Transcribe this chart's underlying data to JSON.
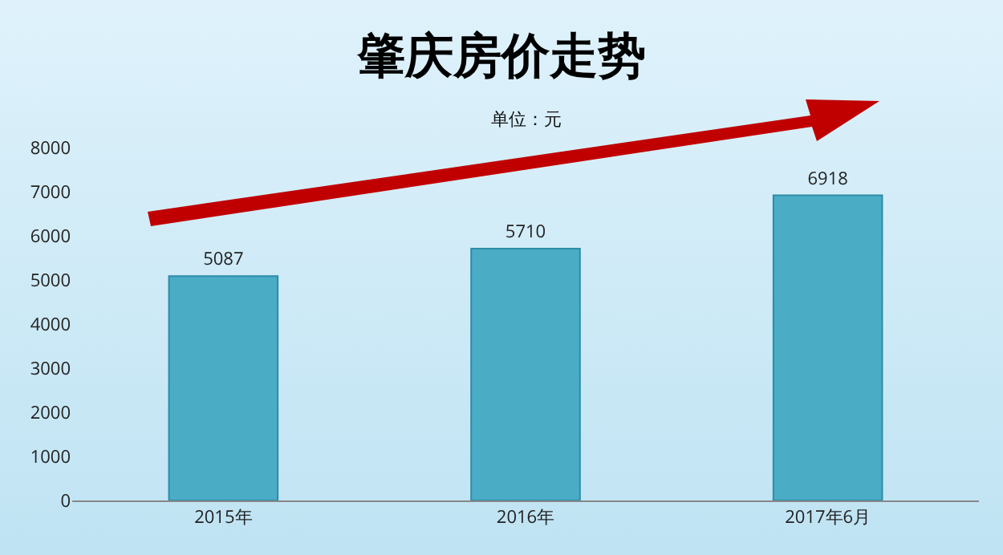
{
  "chart_data": {
    "type": "bar",
    "title": "肇庆房价走势",
    "subtitle": "单位：元",
    "categories": [
      "2015年",
      "2016年",
      "2017年6月"
    ],
    "values": [
      5087,
      5710,
      6918
    ],
    "color": "#4bacc6",
    "ylim": [
      0,
      8000
    ],
    "yticks": [
      0,
      1000,
      2000,
      3000,
      4000,
      5000,
      6000,
      7000,
      8000
    ],
    "data_labels": true,
    "grid": false
  }
}
